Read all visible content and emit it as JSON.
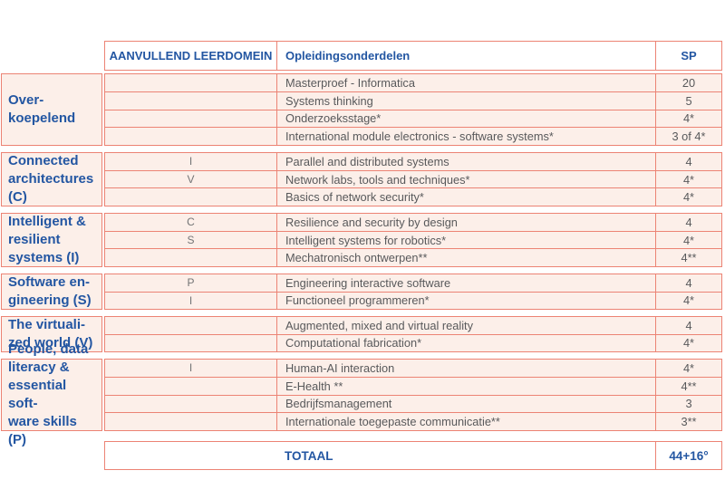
{
  "table": {
    "header": {
      "domain": "AANVULLEND LEERDOMEIN",
      "course": "Opleidingsonderdelen",
      "sp": "SP"
    },
    "groups": [
      {
        "label": "Over-\nkoepelend",
        "rows": [
          {
            "code": "",
            "course": "Masterproef - Informatica",
            "sp": "20"
          },
          {
            "code": "",
            "course": "Systems thinking",
            "sp": "5"
          },
          {
            "code": "",
            "course": "Onderzoeksstage*",
            "sp": "4*"
          },
          {
            "code": "",
            "course": "International module electronics - software systems*",
            "sp": "3 of 4*"
          }
        ]
      },
      {
        "label": "Connected\narchitectures\n(C)",
        "rows": [
          {
            "code": "I",
            "course": "Parallel and distributed systems",
            "sp": "4"
          },
          {
            "code": "V",
            "course": "Network labs, tools and techniques*",
            "sp": "4*"
          },
          {
            "code": "",
            "course": "Basics of network security*",
            "sp": "4*"
          }
        ]
      },
      {
        "label": "Intelligent &\nresilient\nsystems (I)",
        "rows": [
          {
            "code": "C",
            "course": "Resilience and security by design",
            "sp": "4"
          },
          {
            "code": "S",
            "course": "Intelligent systems for robotics*",
            "sp": "4*"
          },
          {
            "code": "",
            "course": "Mechatronisch ontwerpen**",
            "sp": "4**"
          }
        ]
      },
      {
        "label": "Software en-\ngineering (S)",
        "rows": [
          {
            "code": "P",
            "course": "Engineering interactive software",
            "sp": "4"
          },
          {
            "code": "I",
            "course": "Functioneel programmeren*",
            "sp": "4*"
          }
        ]
      },
      {
        "label": "The virtuali-\nzed world (V)",
        "rows": [
          {
            "code": "",
            "course": "Augmented, mixed and virtual reality",
            "sp": "4"
          },
          {
            "code": "",
            "course": "Computational fabrication*",
            "sp": "4*"
          }
        ]
      },
      {
        "label": "People, data\nliteracy &\nessential soft-\nware skills (P)",
        "rows": [
          {
            "code": "I",
            "course": "Human-AI interaction",
            "sp": "4*"
          },
          {
            "code": "",
            "course": "E-Health **",
            "sp": "4**"
          },
          {
            "code": "",
            "course": "Bedrijfsmanagement",
            "sp": "3"
          },
          {
            "code": "",
            "course": "Internationale toegepaste communicatie**",
            "sp": "3**"
          }
        ]
      }
    ],
    "total": {
      "label": "TOTAAL",
      "value": "44+16°"
    }
  },
  "colors": {
    "border": "#ec8374",
    "row_background": "#fcefe9",
    "heading_text": "#2356a2",
    "body_text": "#58595b"
  }
}
